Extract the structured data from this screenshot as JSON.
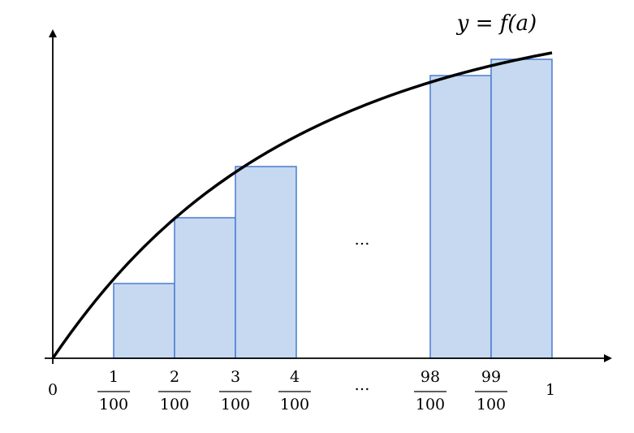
{
  "curve_label": "y = f(a)",
  "middle_ellipsis": "…",
  "origin_label": "0",
  "end_label": "1",
  "axis_ellipsis": "…",
  "ticks": [
    {
      "numerator": "1",
      "denominator": "100"
    },
    {
      "numerator": "2",
      "denominator": "100"
    },
    {
      "numerator": "3",
      "denominator": "100"
    },
    {
      "numerator": "4",
      "denominator": "100"
    },
    {
      "numerator": "98",
      "denominator": "100"
    },
    {
      "numerator": "99",
      "denominator": "100"
    }
  ]
}
